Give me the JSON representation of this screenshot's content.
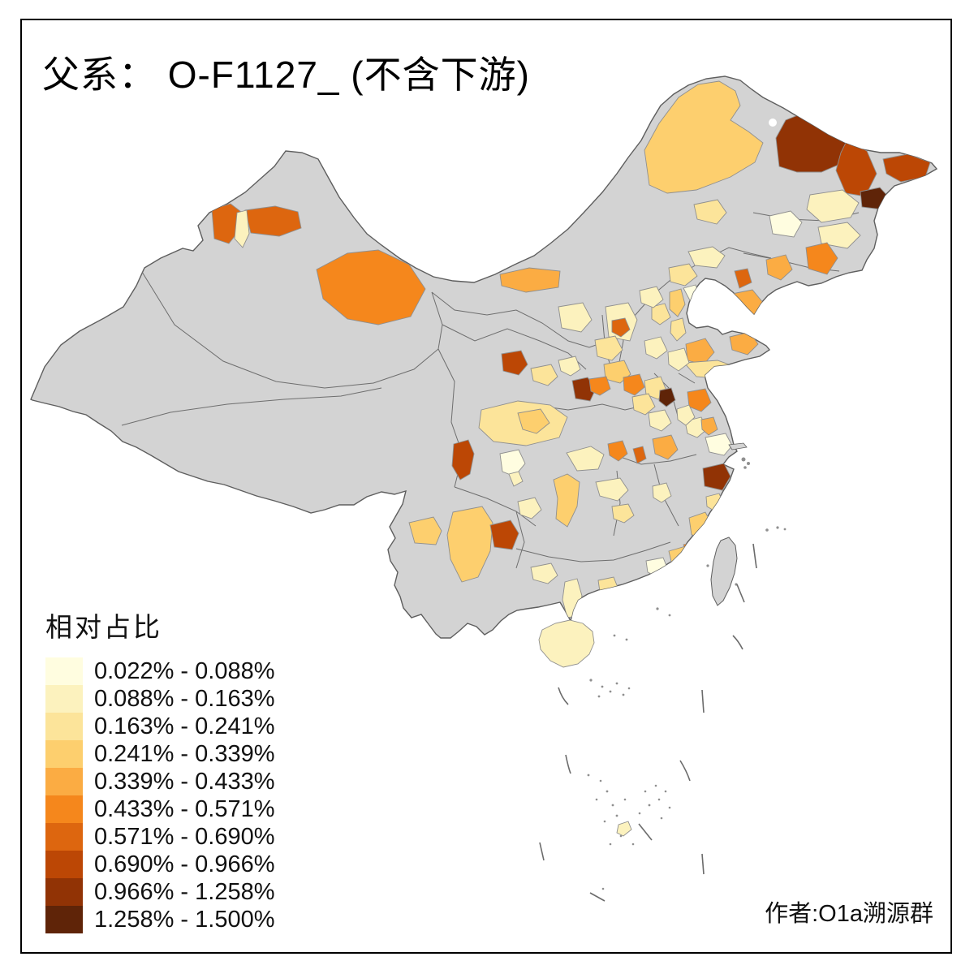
{
  "title": "父系： O-F1127_ (不含下游)",
  "legend": {
    "title": "相对占比",
    "items": [
      {
        "label": "0.022% - 0.088%",
        "color": "#FFFDE0"
      },
      {
        "label": "0.088% - 0.163%",
        "color": "#FCF2BE"
      },
      {
        "label": "0.163% - 0.241%",
        "color": "#FCE49A"
      },
      {
        "label": "0.241% - 0.339%",
        "color": "#FDCF6E"
      },
      {
        "label": "0.339% - 0.433%",
        "color": "#FBAC43"
      },
      {
        "label": "0.433% - 0.571%",
        "color": "#F5871C"
      },
      {
        "label": "0.571% - 0.690%",
        "color": "#DD660F"
      },
      {
        "label": "0.690% - 0.966%",
        "color": "#BC4705"
      },
      {
        "label": "0.966% - 1.258%",
        "color": "#913305"
      },
      {
        "label": "1.258% - 1.500%",
        "color": "#5F2408"
      }
    ]
  },
  "attribution": "作者:O1a溯源群",
  "map": {
    "base_color": "#D3D3D3",
    "border_color": "#5E5E5E",
    "province_border_color": "#6E6E6E",
    "region_border_color": "#8F8F8F",
    "water_color": "#FFFFFF",
    "frame_color": "#000000"
  }
}
